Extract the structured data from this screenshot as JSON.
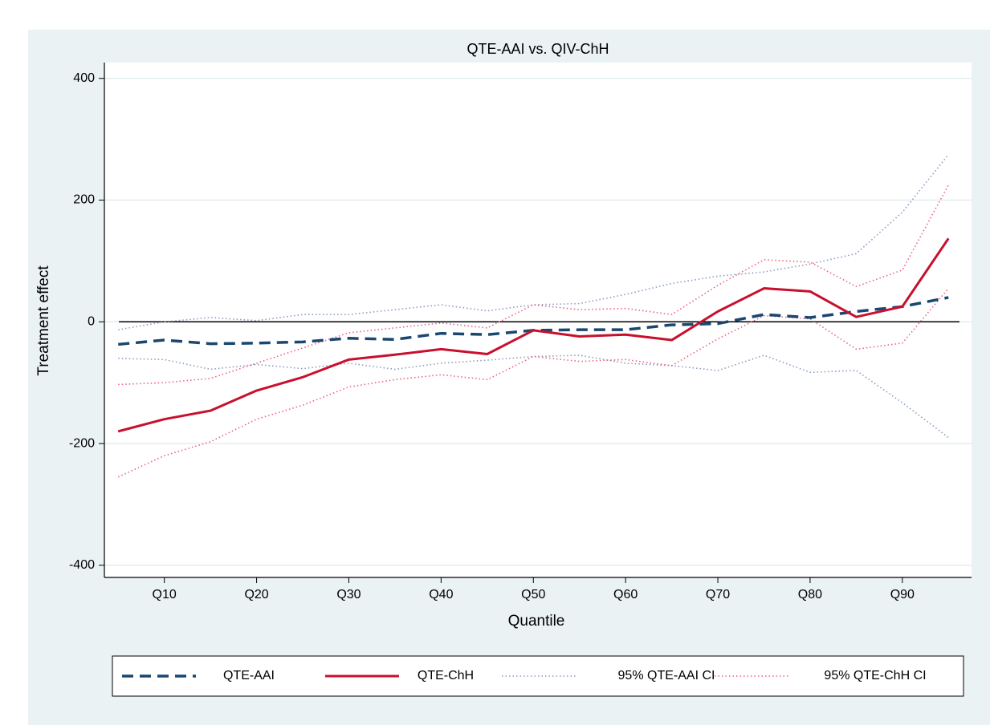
{
  "chart_data": {
    "type": "line",
    "title": "QTE-AAI vs. QIV-ChH",
    "x_label": "Quantile",
    "y_label": "Treatment effect",
    "x": [
      5,
      10,
      15,
      20,
      25,
      30,
      35,
      40,
      45,
      50,
      55,
      60,
      65,
      70,
      75,
      80,
      85,
      90,
      95
    ],
    "xlim": [
      3.5,
      97.5
    ],
    "xticks": [
      {
        "value": 10,
        "label": "Q10"
      },
      {
        "value": 20,
        "label": "Q20"
      },
      {
        "value": 30,
        "label": "Q30"
      },
      {
        "value": 40,
        "label": "Q40"
      },
      {
        "value": 50,
        "label": "Q50"
      },
      {
        "value": 60,
        "label": "Q60"
      },
      {
        "value": 70,
        "label": "Q70"
      },
      {
        "value": 80,
        "label": "Q80"
      },
      {
        "value": 90,
        "label": "Q90"
      }
    ],
    "ylim": [
      -420,
      426
    ],
    "yticks": [
      -400,
      -200,
      0,
      200,
      400
    ],
    "grid": true,
    "reference_line": 0,
    "series": [
      {
        "name": "QTE-AAI",
        "color": "#1a476f",
        "style": "dashed",
        "values": [
          -37,
          -30,
          -36,
          -35,
          -33,
          -27,
          -29,
          -19,
          -21,
          -14,
          -13,
          -13,
          -5,
          -3,
          12,
          7,
          17,
          25,
          40
        ]
      },
      {
        "name": "QTE-ChH",
        "color": "#c8102e",
        "style": "solid",
        "values": [
          -180,
          -160,
          -146,
          -113,
          -91,
          -62,
          -54,
          -45,
          -53,
          -14,
          -24,
          -21,
          -30,
          17,
          55,
          50,
          8,
          25,
          137
        ]
      },
      {
        "name": "95% QTE-AAI CI",
        "color": "#8a9cc0",
        "style": "dotted",
        "values": [
          -13,
          0,
          7,
          2,
          12,
          12,
          20,
          28,
          18,
          28,
          30,
          45,
          63,
          75,
          82,
          95,
          112,
          180,
          275
        ],
        "values_lower": [
          -60,
          -62,
          -78,
          -70,
          -77,
          -68,
          -78,
          -68,
          -63,
          -57,
          -55,
          -68,
          -72,
          -80,
          -55,
          -83,
          -80,
          -133,
          -190
        ]
      },
      {
        "name": "95% QTE-ChH CI",
        "color": "#f06080",
        "style": "dotted",
        "values": [
          -103,
          -100,
          -93,
          -68,
          -43,
          -18,
          -10,
          -2,
          -10,
          28,
          20,
          22,
          12,
          60,
          102,
          98,
          58,
          85,
          225
        ],
        "values_lower": [
          -255,
          -220,
          -197,
          -160,
          -137,
          -107,
          -95,
          -87,
          -95,
          -57,
          -65,
          -62,
          -72,
          -28,
          10,
          5,
          -45,
          -35,
          55
        ]
      }
    ]
  }
}
